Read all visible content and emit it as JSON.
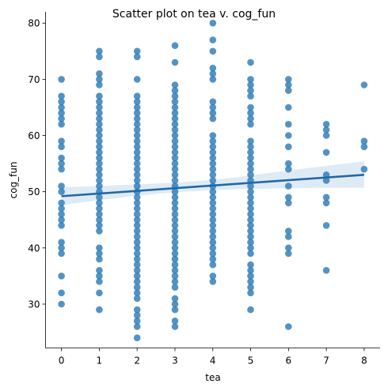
{
  "chart_data": {
    "type": "scatter",
    "title": "Scatter plot on tea v. cog_fun",
    "xlabel": "tea",
    "ylabel": "cog_fun",
    "xlim": [
      -0.42,
      8.42
    ],
    "ylim": [
      22.2,
      82.0
    ],
    "x_ticks": [
      "0",
      "1",
      "2",
      "3",
      "4",
      "5",
      "6",
      "7",
      "8"
    ],
    "y_ticks": [
      "30",
      "40",
      "50",
      "60",
      "70",
      "80"
    ],
    "grid": false,
    "color": "#2878b5",
    "groups": [
      {
        "x": 0,
        "y": [
          30,
          32,
          35,
          39,
          40,
          41,
          44,
          45,
          46,
          47,
          48,
          50,
          51,
          54,
          55,
          56,
          58,
          59,
          62,
          63,
          64,
          65,
          66,
          67,
          70
        ]
      },
      {
        "x": 1,
        "y": [
          29,
          32,
          34,
          35,
          36,
          38,
          39,
          40,
          43,
          44,
          45,
          46,
          47,
          48,
          49,
          50,
          51,
          52,
          53,
          54,
          55,
          56,
          57,
          58,
          59,
          60,
          61,
          62,
          63,
          64,
          65,
          66,
          67,
          69,
          70,
          71,
          74,
          75
        ]
      },
      {
        "x": 2,
        "y": [
          24,
          26,
          27,
          28,
          29,
          31,
          32,
          33,
          34,
          35,
          36,
          37,
          38,
          39,
          40,
          41,
          42,
          43,
          44,
          45,
          46,
          47,
          48,
          49,
          50,
          51,
          52,
          53,
          54,
          55,
          56,
          57,
          58,
          59,
          60,
          61,
          62,
          63,
          64,
          65,
          66,
          67,
          70,
          74,
          75
        ]
      },
      {
        "x": 3,
        "y": [
          26,
          27,
          29,
          30,
          31,
          33,
          34,
          35,
          36,
          37,
          38,
          39,
          40,
          41,
          42,
          43,
          44,
          45,
          46,
          47,
          48,
          49,
          50,
          51,
          52,
          53,
          54,
          55,
          56,
          57,
          58,
          59,
          60,
          61,
          62,
          63,
          64,
          65,
          66,
          67,
          68,
          69,
          73,
          76
        ]
      },
      {
        "x": 4,
        "y": [
          34,
          35,
          37,
          38,
          39,
          40,
          41,
          42,
          43,
          44,
          45,
          46,
          47,
          48,
          49,
          50,
          51,
          52,
          53,
          54,
          55,
          56,
          57,
          58,
          59,
          60,
          63,
          64,
          65,
          66,
          70,
          71,
          72,
          75,
          77,
          80
        ]
      },
      {
        "x": 5,
        "y": [
          29,
          32,
          33,
          34,
          35,
          36,
          37,
          39,
          40,
          41,
          42,
          43,
          44,
          45,
          46,
          47,
          48,
          49,
          50,
          51,
          52,
          53,
          54,
          55,
          56,
          57,
          58,
          59,
          62,
          63,
          64,
          65,
          67,
          68,
          69,
          70,
          73
        ]
      },
      {
        "x": 6,
        "y": [
          26,
          39,
          40,
          42,
          43,
          48,
          49,
          51,
          54,
          55,
          58,
          60,
          62,
          65,
          68,
          69,
          70
        ]
      },
      {
        "x": 7,
        "y": [
          36,
          44,
          48,
          49,
          52,
          53,
          57,
          60,
          61,
          62
        ]
      },
      {
        "x": 8,
        "y": [
          54,
          58,
          59,
          69
        ]
      }
    ],
    "regression": {
      "x": [
        0,
        8
      ],
      "y": [
        49.2,
        53.0
      ]
    },
    "ci_band": {
      "x": [
        0,
        1,
        2,
        3,
        4,
        5,
        6,
        7,
        8
      ],
      "lower": [
        47.6,
        48.5,
        49.3,
        49.9,
        50.3,
        50.5,
        50.6,
        50.7,
        50.7
      ],
      "upper": [
        50.8,
        51.0,
        51.3,
        51.6,
        52.1,
        52.9,
        53.8,
        54.6,
        55.4
      ]
    }
  }
}
